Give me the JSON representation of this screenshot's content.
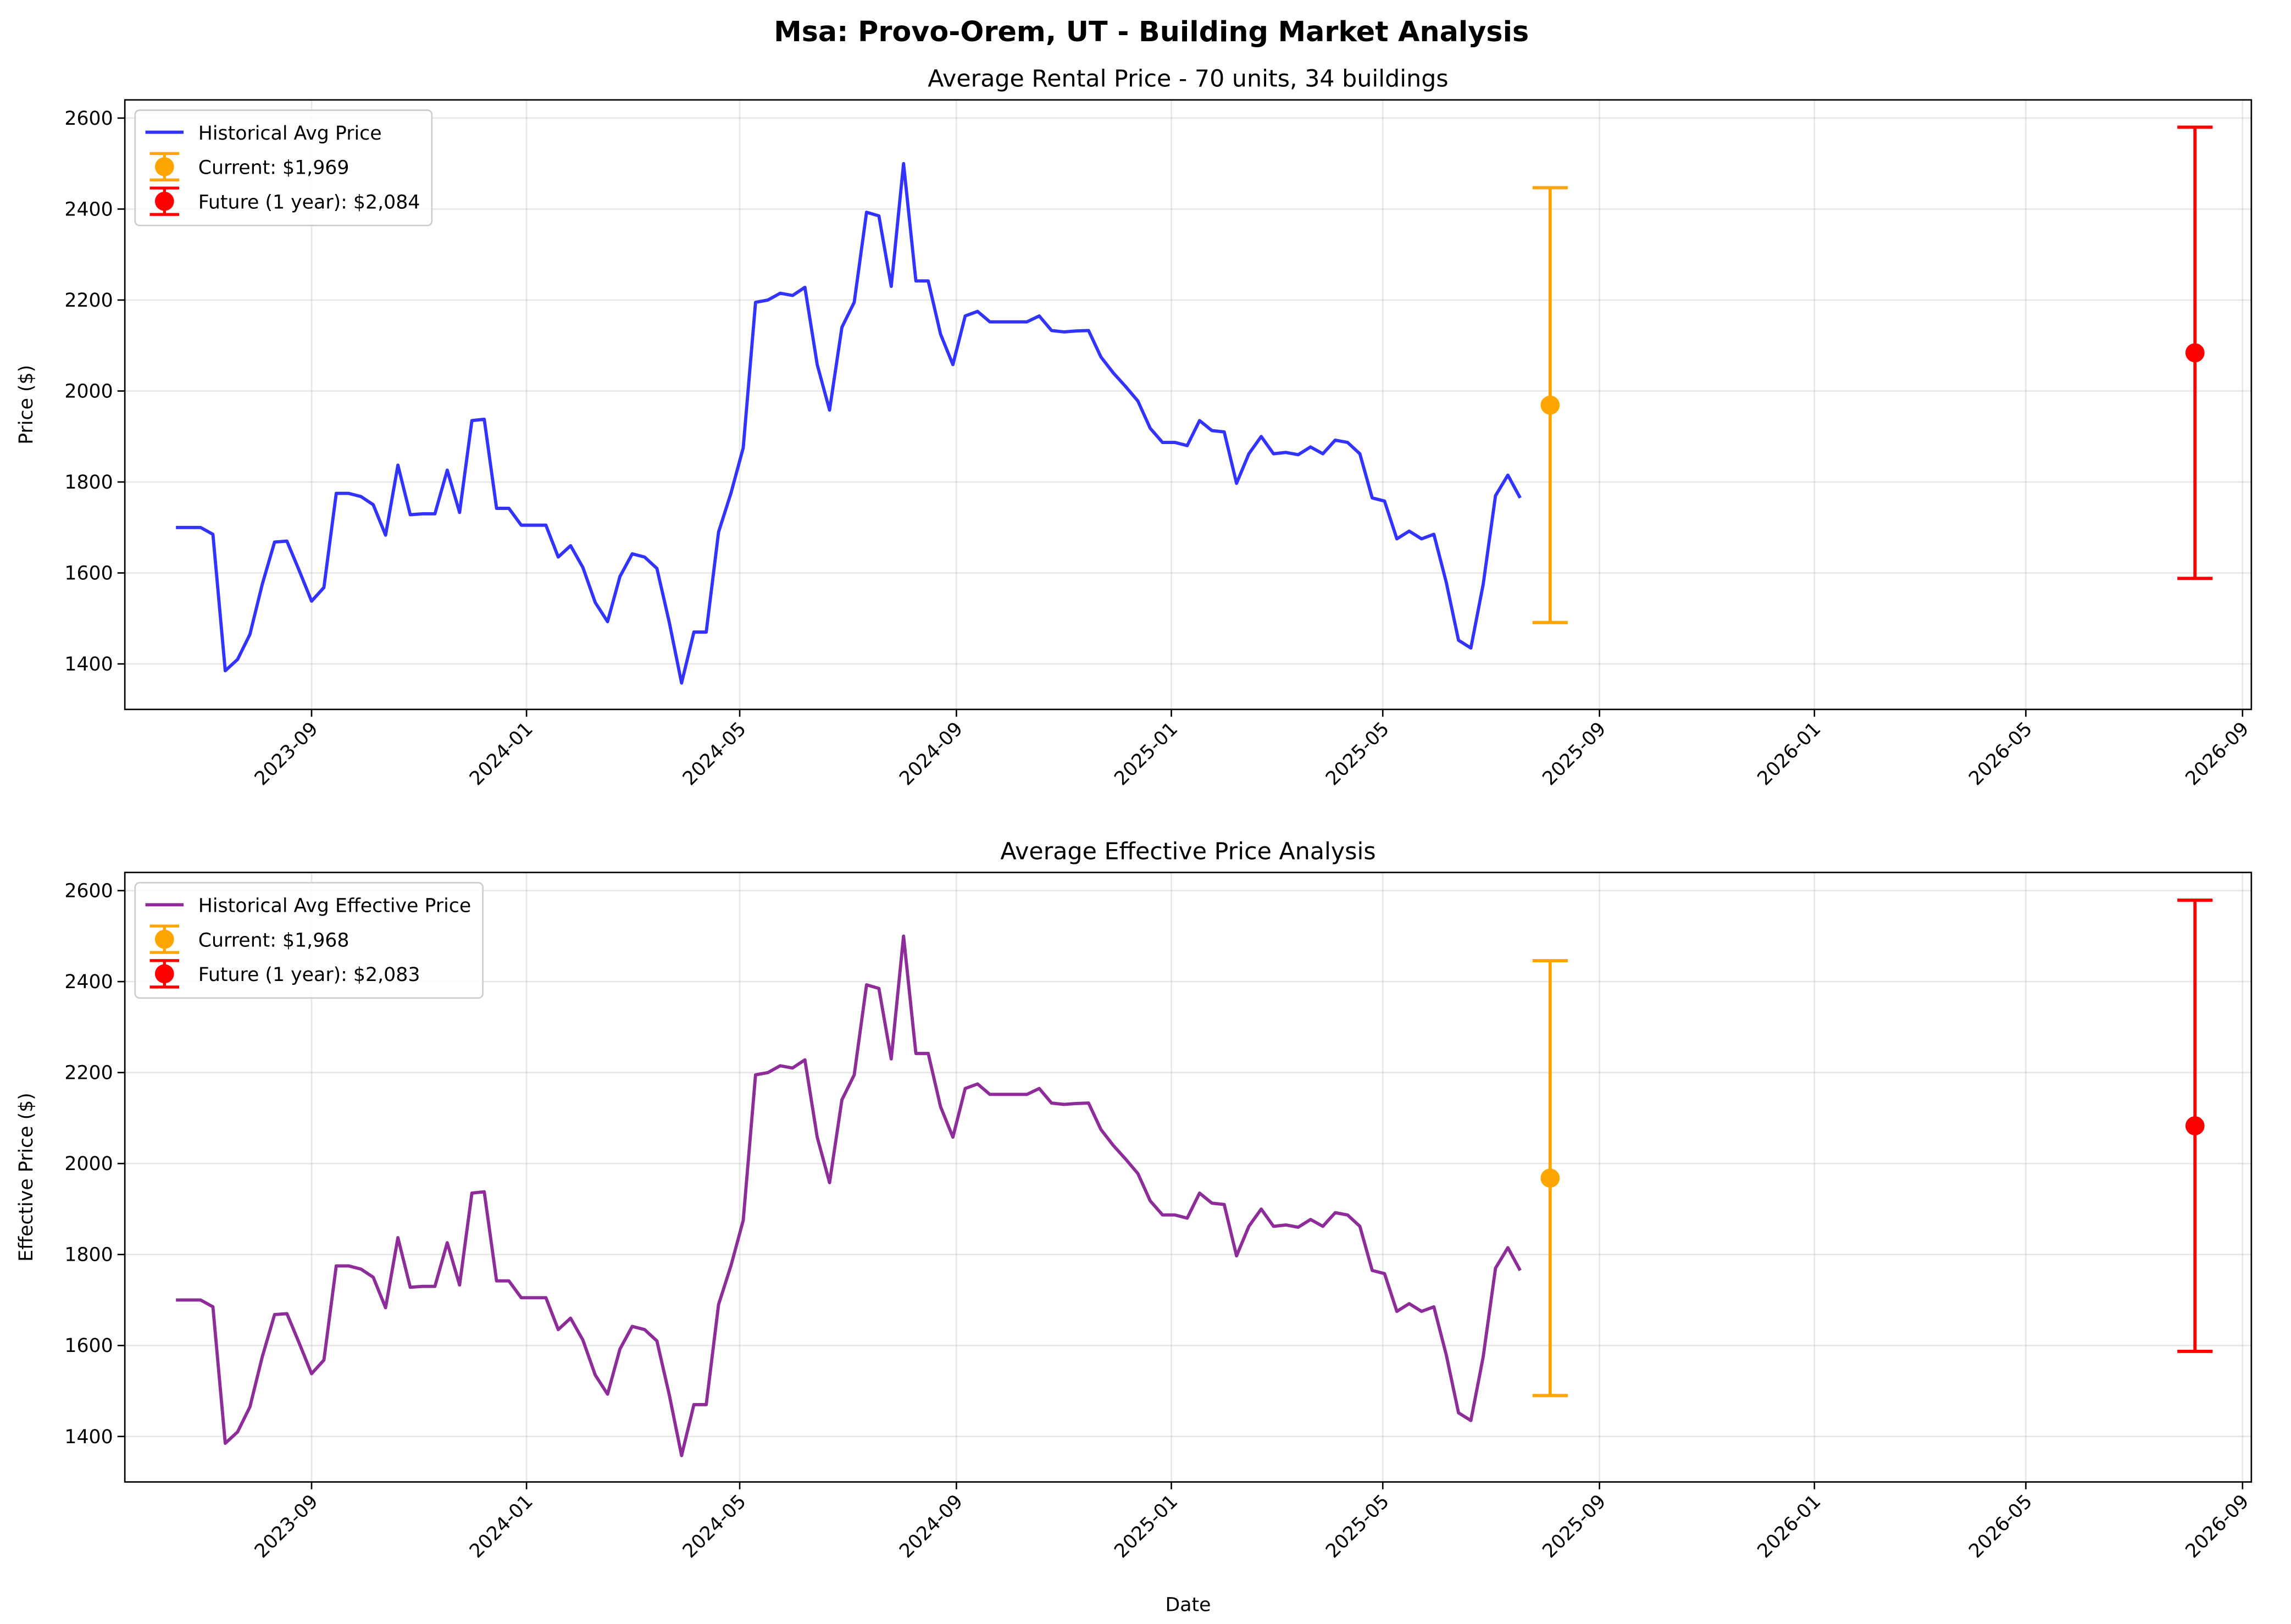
{
  "title": "Msa: Provo-Orem, UT - Building Market Analysis",
  "chart_data": [
    {
      "type": "line",
      "title": "Average Rental Price - 70 units, 34 buildings",
      "ylabel": "Price ($)",
      "grid": true,
      "legend": "upper left",
      "x": [
        "2023-06-16",
        "2023-06-23",
        "2023-06-30",
        "2023-07-07",
        "2023-07-14",
        "2023-07-21",
        "2023-07-28",
        "2023-08-04",
        "2023-08-11",
        "2023-08-18",
        "2023-08-25",
        "2023-09-01",
        "2023-09-08",
        "2023-09-15",
        "2023-09-22",
        "2023-09-29",
        "2023-10-06",
        "2023-10-13",
        "2023-10-20",
        "2023-10-27",
        "2023-11-03",
        "2023-11-10",
        "2023-11-17",
        "2023-11-24",
        "2023-12-01",
        "2023-12-08",
        "2023-12-15",
        "2023-12-22",
        "2023-12-29",
        "2024-01-05",
        "2024-01-12",
        "2024-01-19",
        "2024-01-26",
        "2024-02-02",
        "2024-02-09",
        "2024-02-16",
        "2024-02-23",
        "2024-03-01",
        "2024-03-08",
        "2024-03-15",
        "2024-03-22",
        "2024-03-29",
        "2024-04-05",
        "2024-04-12",
        "2024-04-19",
        "2024-04-26",
        "2024-05-03",
        "2024-05-10",
        "2024-05-17",
        "2024-05-24",
        "2024-05-31",
        "2024-06-07",
        "2024-06-14",
        "2024-06-21",
        "2024-06-28",
        "2024-07-05",
        "2024-07-12",
        "2024-07-19",
        "2024-07-26",
        "2024-08-02",
        "2024-08-09",
        "2024-08-16",
        "2024-08-23",
        "2024-08-30",
        "2024-09-06",
        "2024-09-13",
        "2024-09-20",
        "2024-09-27",
        "2024-10-04",
        "2024-10-11",
        "2024-10-18",
        "2024-10-25",
        "2024-11-01",
        "2024-11-08",
        "2024-11-15",
        "2024-11-22",
        "2024-11-29",
        "2024-12-06",
        "2024-12-13",
        "2024-12-20",
        "2024-12-27",
        "2025-01-03",
        "2025-01-10",
        "2025-01-17",
        "2025-01-24",
        "2025-01-31",
        "2025-02-07",
        "2025-02-14",
        "2025-02-21",
        "2025-02-28",
        "2025-03-07",
        "2025-03-14",
        "2025-03-21",
        "2025-03-28",
        "2025-04-04",
        "2025-04-11",
        "2025-04-18",
        "2025-04-25",
        "2025-05-02",
        "2025-05-09",
        "2025-05-16",
        "2025-05-23",
        "2025-05-30",
        "2025-06-06",
        "2025-06-13",
        "2025-06-20",
        "2025-06-27",
        "2025-07-04",
        "2025-07-11",
        "2025-07-18"
      ],
      "series": [
        {
          "name": "Historical Avg Price",
          "color": "#3333ff",
          "values": [
            1700,
            1700,
            1700,
            1685,
            1385,
            1410,
            1465,
            1575,
            1668,
            1670,
            1605,
            1538,
            1568,
            1775,
            1775,
            1768,
            1750,
            1683,
            1837,
            1728,
            1730,
            1730,
            1826,
            1733,
            1935,
            1938,
            1742,
            1742,
            1705,
            1705,
            1705,
            1635,
            1660,
            1612,
            1535,
            1493,
            1592,
            1642,
            1635,
            1610,
            1492,
            1358,
            1470,
            1470,
            1690,
            1775,
            1875,
            2195,
            2200,
            2215,
            2210,
            2228,
            2058,
            1958,
            2140,
            2195,
            2393,
            2385,
            2230,
            2500,
            2242,
            2242,
            2125,
            2058,
            2165,
            2175,
            2152,
            2152,
            2152,
            2152,
            2165,
            2133,
            2130,
            2132,
            2133,
            2075,
            2040,
            2010,
            1978,
            1918,
            1887,
            1887,
            1880,
            1935,
            1913,
            1910,
            1797,
            1862,
            1900,
            1862,
            1865,
            1860,
            1877,
            1862,
            1892,
            1887,
            1862,
            1765,
            1758,
            1675,
            1692,
            1675,
            1685,
            1580,
            1452,
            1435,
            1575,
            1770,
            1815,
            1765
          ]
        },
        {
          "name": "Current: $1,969",
          "type": "errorbar",
          "color": "orange",
          "x": [
            "2025-08-04"
          ],
          "values": [
            1969
          ],
          "errors": [
            478
          ]
        },
        {
          "name": "Future (1 year): $2,084",
          "type": "errorbar",
          "color": "red",
          "x": [
            "2026-08-05"
          ],
          "values": [
            2084
          ],
          "errors": [
            496
          ]
        }
      ],
      "xlim": [
        "2023-05-18",
        "2026-09-06"
      ],
      "xticks": [
        "2023-09",
        "2024-01",
        "2024-05",
        "2024-09",
        "2025-01",
        "2025-05",
        "2025-09",
        "2026-01",
        "2026-05",
        "2026-09"
      ],
      "ylim": [
        1300,
        2640
      ],
      "yticks": [
        1400,
        1600,
        1800,
        2000,
        2200,
        2400,
        2600
      ]
    },
    {
      "type": "line",
      "title": "Average Effective Price Analysis",
      "ylabel": "Effective Price ($)",
      "xlabel": "Date",
      "grid": true,
      "legend": "upper left",
      "x": [
        "2023-06-16",
        "2023-06-23",
        "2023-06-30",
        "2023-07-07",
        "2023-07-14",
        "2023-07-21",
        "2023-07-28",
        "2023-08-04",
        "2023-08-11",
        "2023-08-18",
        "2023-08-25",
        "2023-09-01",
        "2023-09-08",
        "2023-09-15",
        "2023-09-22",
        "2023-09-29",
        "2023-10-06",
        "2023-10-13",
        "2023-10-20",
        "2023-10-27",
        "2023-11-03",
        "2023-11-10",
        "2023-11-17",
        "2023-11-24",
        "2023-12-01",
        "2023-12-08",
        "2023-12-15",
        "2023-12-22",
        "2023-12-29",
        "2024-01-05",
        "2024-01-12",
        "2024-01-19",
        "2024-01-26",
        "2024-02-02",
        "2024-02-09",
        "2024-02-16",
        "2024-02-23",
        "2024-03-01",
        "2024-03-08",
        "2024-03-15",
        "2024-03-22",
        "2024-03-29",
        "2024-04-05",
        "2024-04-12",
        "2024-04-19",
        "2024-04-26",
        "2024-05-03",
        "2024-05-10",
        "2024-05-17",
        "2024-05-24",
        "2024-05-31",
        "2024-06-07",
        "2024-06-14",
        "2024-06-21",
        "2024-06-28",
        "2024-07-05",
        "2024-07-12",
        "2024-07-19",
        "2024-07-26",
        "2024-08-02",
        "2024-08-09",
        "2024-08-16",
        "2024-08-23",
        "2024-08-30",
        "2024-09-06",
        "2024-09-13",
        "2024-09-20",
        "2024-09-27",
        "2024-10-04",
        "2024-10-11",
        "2024-10-18",
        "2024-10-25",
        "2024-11-01",
        "2024-11-08",
        "2024-11-15",
        "2024-11-22",
        "2024-11-29",
        "2024-12-06",
        "2024-12-13",
        "2024-12-20",
        "2024-12-27",
        "2025-01-03",
        "2025-01-10",
        "2025-01-17",
        "2025-01-24",
        "2025-01-31",
        "2025-02-07",
        "2025-02-14",
        "2025-02-21",
        "2025-02-28",
        "2025-03-07",
        "2025-03-14",
        "2025-03-21",
        "2025-03-28",
        "2025-04-04",
        "2025-04-11",
        "2025-04-18",
        "2025-04-25",
        "2025-05-02",
        "2025-05-09",
        "2025-05-16",
        "2025-05-23",
        "2025-05-30",
        "2025-06-06",
        "2025-06-13",
        "2025-06-20",
        "2025-06-27",
        "2025-07-04",
        "2025-07-11",
        "2025-07-18"
      ],
      "series": [
        {
          "name": "Historical Avg Effective Price",
          "color": "#8e2c9a",
          "values": [
            1700,
            1700,
            1700,
            1685,
            1385,
            1410,
            1465,
            1575,
            1668,
            1670,
            1605,
            1538,
            1568,
            1775,
            1775,
            1768,
            1750,
            1683,
            1837,
            1728,
            1730,
            1730,
            1826,
            1733,
            1935,
            1938,
            1742,
            1742,
            1705,
            1705,
            1705,
            1635,
            1660,
            1612,
            1535,
            1493,
            1592,
            1642,
            1635,
            1610,
            1492,
            1358,
            1470,
            1470,
            1690,
            1775,
            1875,
            2195,
            2200,
            2215,
            2210,
            2228,
            2058,
            1958,
            2140,
            2195,
            2393,
            2385,
            2230,
            2500,
            2242,
            2242,
            2125,
            2058,
            2165,
            2175,
            2152,
            2152,
            2152,
            2152,
            2165,
            2133,
            2130,
            2132,
            2133,
            2075,
            2040,
            2010,
            1978,
            1918,
            1887,
            1887,
            1880,
            1935,
            1913,
            1910,
            1797,
            1862,
            1900,
            1862,
            1865,
            1860,
            1877,
            1862,
            1892,
            1887,
            1862,
            1765,
            1758,
            1675,
            1692,
            1675,
            1685,
            1580,
            1452,
            1435,
            1575,
            1770,
            1815,
            1765
          ]
        },
        {
          "name": "Current: $1,968",
          "type": "errorbar",
          "color": "orange",
          "x": [
            "2025-08-04"
          ],
          "values": [
            1968
          ],
          "errors": [
            478
          ]
        },
        {
          "name": "Future (1 year): $2,083",
          "type": "errorbar",
          "color": "red",
          "x": [
            "2026-08-05"
          ],
          "values": [
            2083
          ],
          "errors": [
            496
          ]
        }
      ],
      "xlim": [
        "2023-05-18",
        "2026-09-06"
      ],
      "xticks": [
        "2023-09",
        "2024-01",
        "2024-05",
        "2024-09",
        "2025-01",
        "2025-05",
        "2025-09",
        "2026-01",
        "2026-05",
        "2026-09"
      ],
      "ylim": [
        1300,
        2640
      ],
      "yticks": [
        1400,
        1600,
        1800,
        2000,
        2200,
        2400,
        2600
      ]
    }
  ]
}
